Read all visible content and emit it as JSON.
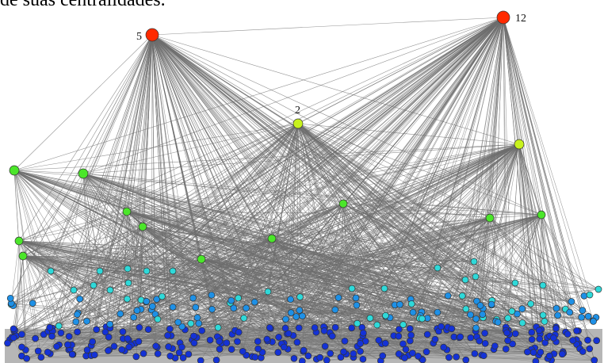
{
  "document": {
    "caption_fragment": "de suas centralidades."
  },
  "graph": {
    "edge_color": "#6e6e6e",
    "node_outline": "#333333",
    "centrality_colors": {
      "very_high": "#ff2a00",
      "high": "#c8f21e",
      "medium_high": "#4be62a",
      "medium": "#2fd9d9",
      "low": "#1e90e6",
      "very_low": "#1432d6"
    },
    "hubs": [
      {
        "label": "5",
        "level": "very_high"
      },
      {
        "label": "12",
        "level": "very_high"
      },
      {
        "label": "2",
        "level": "high"
      }
    ]
  }
}
